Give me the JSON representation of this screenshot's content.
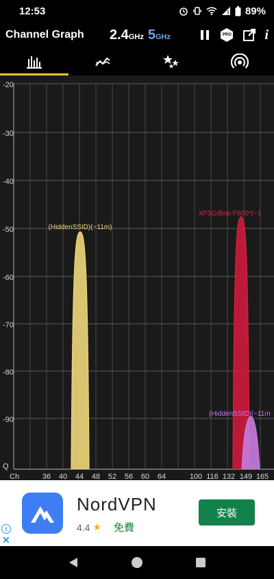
{
  "status_bar": {
    "time": "12:53",
    "battery": "89%"
  },
  "app_bar": {
    "title": "Channel Graph",
    "band_24_value": "2.4",
    "band_24_unit": "GHz",
    "band_5_value": "5",
    "band_5_unit": "GHz",
    "pro_badge": "PRO",
    "info_label": "i"
  },
  "tabs": [
    {
      "icon": "bar-chart-icon",
      "active": true
    },
    {
      "icon": "time-graph-icon",
      "active": false
    },
    {
      "icon": "stars-rating-icon",
      "active": false
    },
    {
      "icon": "access-point-icon",
      "active": false
    }
  ],
  "graph": {
    "y_labels": [
      "-20",
      "-30",
      "-40",
      "-50",
      "-60",
      "-70",
      "-80",
      "-90",
      "Q"
    ],
    "x_axis_title": "Ch",
    "x_labels": [
      "36",
      "40",
      "44",
      "48",
      "52",
      "56",
      "60",
      "64",
      "100",
      "116",
      "132",
      "149",
      "165"
    ],
    "networks": [
      {
        "label": "(HiddenSSID)(~11m)",
        "color": "#f0d977",
        "fill": "#e9d27a"
      },
      {
        "label": "XF5Gdlink-F600*(~1",
        "color": "#e0203c",
        "fill": "#c8193a"
      },
      {
        "label": "(HiddenSSID)(~11m",
        "color": "#c878e8",
        "fill": "#c57ad8"
      }
    ]
  },
  "ad": {
    "name": "NordVPN",
    "rating": "4.4",
    "price": "免費",
    "install": "安裝",
    "info": "i",
    "close": "✕"
  },
  "colors": {
    "accent": "#f2c230",
    "band5": "#6ea6e6",
    "install_bg": "#13814a"
  }
}
